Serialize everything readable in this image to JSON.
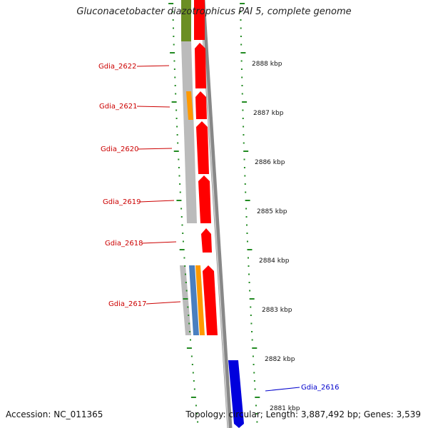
{
  "title": "Gluconacetobacter diazotrophicus PAI 5, complete genome",
  "accession_text": "Accession: NC_011365",
  "summary_text": "Topology: circular; Length: 3,887,492 bp; Genes: 3,539",
  "genes": [
    {
      "label": "Gdia_2622",
      "color": "#cc0000"
    },
    {
      "label": "Gdia_2621",
      "color": "#cc0000"
    },
    {
      "label": "Gdia_2620",
      "color": "#cc0000"
    },
    {
      "label": "Gdia_2619",
      "color": "#cc0000"
    },
    {
      "label": "Gdia_2618",
      "color": "#cc0000"
    },
    {
      "label": "Gdia_2617",
      "color": "#cc0000"
    },
    {
      "label": "Gdia_2616",
      "color": "#0000cc"
    }
  ],
  "ticks": [
    {
      "label": "2888 kbp"
    },
    {
      "label": "2887 kbp"
    },
    {
      "label": "2886 kbp"
    },
    {
      "label": "2885 kbp"
    },
    {
      "label": "2884 kbp"
    },
    {
      "label": "2883 kbp"
    },
    {
      "label": "2882 kbp"
    },
    {
      "label": "2881 kbp"
    }
  ],
  "colors": {
    "cds_forward": "#ff0000",
    "cds_reverse": "#0000ff",
    "gene_gray": "#bbbbbb",
    "gene_olive": "#6b8e23",
    "gene_orange": "#ff8c00",
    "gene_steelblue": "#4a7fc0",
    "backbone": "#888888",
    "tick_green": "#228b22"
  }
}
